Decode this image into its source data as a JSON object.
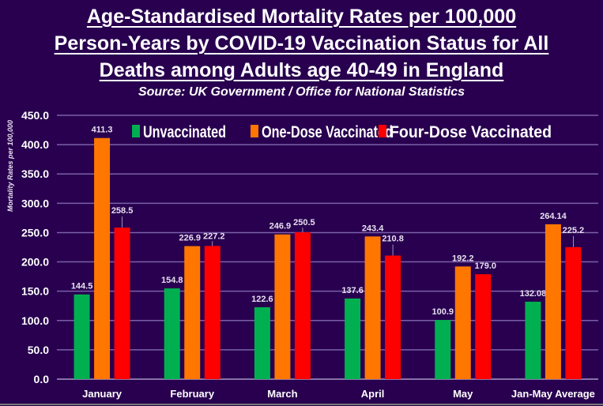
{
  "chart_data": {
    "type": "bar",
    "title": "Age-Standardised Mortality Rates per 100,000 Person-Years by COVID-19 Vaccination Status for All Deaths among Adults age 40-49 in England",
    "title_lines": [
      "Age-Standardised Mortality Rates per 100,000",
      "Person-Years by COVID-19 Vaccination Status for All",
      "Deaths among Adults age 40-49 in England"
    ],
    "subtitle": "Source: UK Government / Office for National Statistics",
    "xlabel": "",
    "ylabel": "Mortality Rates per 100,000",
    "ylim": [
      0,
      450
    ],
    "yticks": [
      "0.0",
      "50.0",
      "100.0",
      "150.0",
      "200.0",
      "250.0",
      "300.0",
      "350.0",
      "400.0",
      "450.0"
    ],
    "grid": true,
    "legend_position": "top",
    "categories": [
      "January",
      "February",
      "March",
      "April",
      "May",
      "Jan-May Average"
    ],
    "series": [
      {
        "name": "Unvaccinated",
        "color": "#00b050",
        "values": [
          144.5,
          154.8,
          122.6,
          137.6,
          100.9,
          132.08
        ],
        "labels": [
          "144.5",
          "154.8",
          "122.6",
          "137.6",
          "100.9",
          "132.08"
        ]
      },
      {
        "name": "One-Dose Vaccinated",
        "color": "#ff7700",
        "values": [
          411.3,
          226.9,
          246.9,
          243.4,
          192.2,
          264.14
        ],
        "labels": [
          "411.3",
          "226.9",
          "246.9",
          "243.4",
          "192.2",
          "264.14"
        ]
      },
      {
        "name": "Four-Dose Vaccinated",
        "color": "#ff0000",
        "values": [
          258.5,
          227.2,
          250.5,
          210.8,
          179.0,
          225.2
        ],
        "labels": [
          "258.5",
          "227.2",
          "250.5",
          "210.8",
          "179.0",
          "225.2"
        ]
      }
    ]
  }
}
